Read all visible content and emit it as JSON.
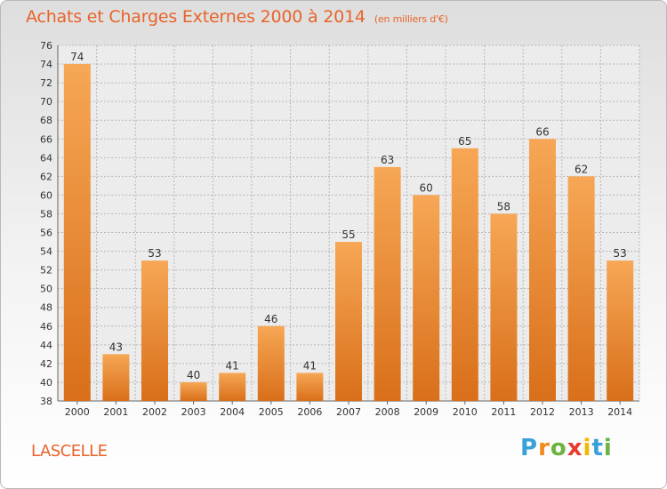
{
  "title": "Achats et Charges Externes 2000 à 2014",
  "subtitle": "(en milliers d'€)",
  "commune": "LASCELLE",
  "logo": {
    "letters": [
      "P",
      "r",
      "o",
      "x",
      "i",
      "t",
      "i"
    ],
    "colors": [
      "#3aa0d8",
      "#f08a1c",
      "#6cb33f",
      "#e63b2e",
      "#f5b800",
      "#3aa0d8",
      "#6cb33f"
    ]
  },
  "colors": {
    "accent": "#e8632a",
    "bar_top": "#f6a755",
    "bar_bottom": "#d96f1a",
    "grid": "#b8b8b8",
    "axis_text": "#333333"
  },
  "chart_data": {
    "type": "bar",
    "categories": [
      "2000",
      "2001",
      "2002",
      "2003",
      "2004",
      "2005",
      "2006",
      "2007",
      "2008",
      "2009",
      "2010",
      "2011",
      "2012",
      "2013",
      "2014"
    ],
    "values": [
      74,
      43,
      53,
      40,
      41,
      46,
      41,
      55,
      63,
      60,
      65,
      58,
      66,
      62,
      53
    ],
    "ylim": [
      38,
      76
    ],
    "yticks": [
      38,
      40,
      42,
      44,
      46,
      48,
      50,
      52,
      54,
      56,
      58,
      60,
      62,
      64,
      66,
      68,
      70,
      72,
      74,
      76
    ],
    "grid": true,
    "data_labels": true,
    "title": "Achats et Charges Externes 2000 à 2014",
    "xlabel": "",
    "ylabel": ""
  }
}
